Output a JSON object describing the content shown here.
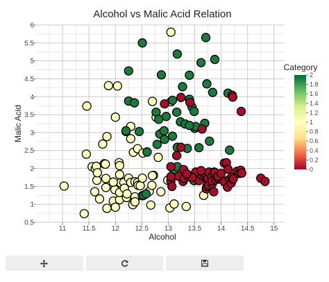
{
  "chart_data": {
    "type": "scatter",
    "title": "Alcohol vs Malic Acid Relation",
    "xlabel": "Alcohol",
    "ylabel": "Malic Acid",
    "xlim": [
      10.5,
      15.2
    ],
    "ylim": [
      0.5,
      6.0
    ],
    "xticks": [
      "11",
      "11.5",
      "12",
      "12.5",
      "13",
      "13.5",
      "14",
      "14.5",
      "15"
    ],
    "yticks": [
      "0.5",
      "1",
      "1.5",
      "2",
      "2.5",
      "3",
      "3.5",
      "4",
      "4.5",
      "5",
      "5.5",
      "6"
    ],
    "grid": true,
    "colorbar": {
      "title": "Category",
      "min": 0,
      "max": 2,
      "ticks": [
        "0",
        "0.2",
        "0.4",
        "0.6",
        "0.8",
        "1",
        "1.2",
        "1.4",
        "1.6",
        "1.8",
        "2"
      ],
      "colors": [
        "#a50026",
        "#f46d43",
        "#fee08b",
        "#ffffbf",
        "#d9ef8b",
        "#66bd63",
        "#006837"
      ]
    },
    "points": [
      {
        "x": 11.03,
        "y": 1.51,
        "c": 1
      },
      {
        "x": 11.41,
        "y": 0.74,
        "c": 1
      },
      {
        "x": 11.45,
        "y": 2.4,
        "c": 1
      },
      {
        "x": 11.46,
        "y": 3.74,
        "c": 1
      },
      {
        "x": 11.56,
        "y": 2.05,
        "c": 1
      },
      {
        "x": 11.61,
        "y": 1.35,
        "c": 1
      },
      {
        "x": 11.62,
        "y": 1.99,
        "c": 1
      },
      {
        "x": 11.64,
        "y": 2.06,
        "c": 1
      },
      {
        "x": 11.65,
        "y": 1.67,
        "c": 1
      },
      {
        "x": 11.66,
        "y": 1.88,
        "c": 1
      },
      {
        "x": 11.7,
        "y": 1.15,
        "c": 1
      },
      {
        "x": 11.76,
        "y": 2.68,
        "c": 1
      },
      {
        "x": 11.79,
        "y": 2.13,
        "c": 1
      },
      {
        "x": 11.81,
        "y": 2.12,
        "c": 1
      },
      {
        "x": 11.82,
        "y": 1.72,
        "c": 1
      },
      {
        "x": 11.82,
        "y": 1.47,
        "c": 1
      },
      {
        "x": 11.84,
        "y": 2.89,
        "c": 1
      },
      {
        "x": 11.84,
        "y": 0.89,
        "c": 1
      },
      {
        "x": 11.87,
        "y": 4.31,
        "c": 1
      },
      {
        "x": 11.96,
        "y": 1.09,
        "c": 1
      },
      {
        "x": 11.99,
        "y": 1.41,
        "c": 1
      },
      {
        "x": 12.0,
        "y": 0.92,
        "c": 1
      },
      {
        "x": 12.0,
        "y": 3.43,
        "c": 1
      },
      {
        "x": 12.04,
        "y": 4.3,
        "c": 1
      },
      {
        "x": 12.07,
        "y": 2.16,
        "c": 1
      },
      {
        "x": 12.08,
        "y": 1.13,
        "c": 1
      },
      {
        "x": 12.08,
        "y": 1.33,
        "c": 1
      },
      {
        "x": 12.08,
        "y": 2.08,
        "c": 1
      },
      {
        "x": 12.08,
        "y": 1.83,
        "c": 1
      },
      {
        "x": 12.1,
        "y": 1.6,
        "c": 1
      },
      {
        "x": 12.16,
        "y": 1.61,
        "c": 1
      },
      {
        "x": 12.17,
        "y": 1.45,
        "c": 1
      },
      {
        "x": 12.2,
        "y": 3.03,
        "c": 1
      },
      {
        "x": 12.21,
        "y": 1.19,
        "c": 1
      },
      {
        "x": 12.22,
        "y": 1.29,
        "c": 1
      },
      {
        "x": 12.25,
        "y": 1.73,
        "c": 1
      },
      {
        "x": 12.29,
        "y": 3.17,
        "c": 1
      },
      {
        "x": 12.29,
        "y": 2.83,
        "c": 1
      },
      {
        "x": 12.29,
        "y": 1.61,
        "c": 1
      },
      {
        "x": 12.33,
        "y": 0.99,
        "c": 1
      },
      {
        "x": 12.34,
        "y": 2.45,
        "c": 1
      },
      {
        "x": 12.37,
        "y": 1.63,
        "c": 1
      },
      {
        "x": 12.37,
        "y": 1.13,
        "c": 1
      },
      {
        "x": 12.37,
        "y": 1.21,
        "c": 1
      },
      {
        "x": 12.37,
        "y": 1.07,
        "c": 1
      },
      {
        "x": 12.42,
        "y": 1.61,
        "c": 1
      },
      {
        "x": 12.42,
        "y": 2.55,
        "c": 1
      },
      {
        "x": 12.43,
        "y": 1.53,
        "c": 1
      },
      {
        "x": 12.47,
        "y": 1.52,
        "c": 1
      },
      {
        "x": 12.51,
        "y": 1.73,
        "c": 1
      },
      {
        "x": 12.52,
        "y": 2.43,
        "c": 1
      },
      {
        "x": 12.6,
        "y": 2.46,
        "c": 1
      },
      {
        "x": 12.64,
        "y": 1.36,
        "c": 1
      },
      {
        "x": 12.67,
        "y": 0.98,
        "c": 1
      },
      {
        "x": 12.69,
        "y": 1.53,
        "c": 1
      },
      {
        "x": 12.7,
        "y": 3.87,
        "c": 1
      },
      {
        "x": 12.72,
        "y": 1.81,
        "c": 1
      },
      {
        "x": 12.77,
        "y": 3.43,
        "c": 1
      },
      {
        "x": 12.99,
        "y": 1.67,
        "c": 1
      },
      {
        "x": 13.03,
        "y": 0.9,
        "c": 1
      },
      {
        "x": 13.05,
        "y": 5.8,
        "c": 1
      },
      {
        "x": 13.05,
        "y": 3.86,
        "c": 1
      },
      {
        "x": 13.11,
        "y": 1.01,
        "c": 1
      },
      {
        "x": 13.34,
        "y": 0.94,
        "c": 1
      },
      {
        "x": 13.49,
        "y": 1.66,
        "c": 1
      },
      {
        "x": 13.67,
        "y": 1.25,
        "c": 1
      },
      {
        "x": 12.86,
        "y": 1.35,
        "c": 1
      },
      {
        "x": 12.88,
        "y": 2.99,
        "c": 1
      },
      {
        "x": 12.81,
        "y": 2.31,
        "c": 1
      },
      {
        "x": 12.7,
        "y": 1.8,
        "c": 1
      },
      {
        "x": 12.51,
        "y": 1.24,
        "c": 1
      },
      {
        "x": 11.96,
        "y": 1.62,
        "c": 1
      },
      {
        "x": 12.2,
        "y": 3.05,
        "c": 2
      },
      {
        "x": 12.25,
        "y": 3.88,
        "c": 2
      },
      {
        "x": 12.25,
        "y": 4.72,
        "c": 2
      },
      {
        "x": 12.36,
        "y": 3.83,
        "c": 2
      },
      {
        "x": 12.45,
        "y": 3.03,
        "c": 2
      },
      {
        "x": 12.51,
        "y": 5.5,
        "c": 2
      },
      {
        "x": 12.53,
        "y": 1.25,
        "c": 2
      },
      {
        "x": 12.58,
        "y": 1.29,
        "c": 2
      },
      {
        "x": 12.6,
        "y": 2.46,
        "c": 2
      },
      {
        "x": 12.77,
        "y": 3.57,
        "c": 2
      },
      {
        "x": 12.79,
        "y": 2.67,
        "c": 2
      },
      {
        "x": 12.82,
        "y": 3.37,
        "c": 2
      },
      {
        "x": 12.84,
        "y": 2.96,
        "c": 2
      },
      {
        "x": 12.87,
        "y": 4.61,
        "c": 2
      },
      {
        "x": 12.93,
        "y": 2.81,
        "c": 2
      },
      {
        "x": 12.96,
        "y": 3.45,
        "c": 2
      },
      {
        "x": 13.08,
        "y": 3.9,
        "c": 2
      },
      {
        "x": 13.16,
        "y": 3.57,
        "c": 2
      },
      {
        "x": 13.17,
        "y": 5.19,
        "c": 2
      },
      {
        "x": 13.17,
        "y": 2.59,
        "c": 2
      },
      {
        "x": 13.23,
        "y": 3.3,
        "c": 2
      },
      {
        "x": 13.27,
        "y": 4.28,
        "c": 2
      },
      {
        "x": 13.32,
        "y": 3.24,
        "c": 2
      },
      {
        "x": 13.36,
        "y": 2.56,
        "c": 2
      },
      {
        "x": 13.4,
        "y": 3.93,
        "c": 2
      },
      {
        "x": 13.4,
        "y": 4.6,
        "c": 2
      },
      {
        "x": 13.45,
        "y": 3.71,
        "c": 2
      },
      {
        "x": 13.48,
        "y": 1.67,
        "c": 2
      },
      {
        "x": 13.49,
        "y": 3.59,
        "c": 2
      },
      {
        "x": 13.5,
        "y": 3.12,
        "c": 2
      },
      {
        "x": 13.52,
        "y": 3.17,
        "c": 2
      },
      {
        "x": 13.58,
        "y": 2.58,
        "c": 2
      },
      {
        "x": 13.62,
        "y": 4.95,
        "c": 2
      },
      {
        "x": 13.69,
        "y": 3.26,
        "c": 2
      },
      {
        "x": 13.71,
        "y": 5.65,
        "c": 2
      },
      {
        "x": 13.73,
        "y": 4.36,
        "c": 2
      },
      {
        "x": 13.78,
        "y": 2.76,
        "c": 2
      },
      {
        "x": 13.84,
        "y": 4.12,
        "c": 2
      },
      {
        "x": 13.88,
        "y": 5.04,
        "c": 2
      },
      {
        "x": 14.16,
        "y": 2.51,
        "c": 2
      },
      {
        "x": 14.13,
        "y": 4.1,
        "c": 2
      },
      {
        "x": 13.11,
        "y": 1.9,
        "c": 2
      },
      {
        "x": 13.4,
        "y": 3.2,
        "c": 2
      },
      {
        "x": 13.17,
        "y": 2.05,
        "c": 2
      },
      {
        "x": 12.92,
        "y": 3.05,
        "c": 2
      },
      {
        "x": 13.08,
        "y": 2.9,
        "c": 2
      },
      {
        "x": 12.93,
        "y": 3.8,
        "c": 0
      },
      {
        "x": 13.05,
        "y": 1.65,
        "c": 0
      },
      {
        "x": 13.05,
        "y": 1.77,
        "c": 0
      },
      {
        "x": 13.05,
        "y": 2.05,
        "c": 0
      },
      {
        "x": 13.07,
        "y": 1.5,
        "c": 0
      },
      {
        "x": 13.16,
        "y": 2.36,
        "c": 0
      },
      {
        "x": 13.2,
        "y": 1.78,
        "c": 0
      },
      {
        "x": 13.24,
        "y": 2.59,
        "c": 0
      },
      {
        "x": 13.24,
        "y": 3.98,
        "c": 0
      },
      {
        "x": 13.28,
        "y": 1.64,
        "c": 0
      },
      {
        "x": 13.29,
        "y": 1.97,
        "c": 0
      },
      {
        "x": 13.3,
        "y": 1.72,
        "c": 0
      },
      {
        "x": 13.39,
        "y": 1.77,
        "c": 0
      },
      {
        "x": 13.41,
        "y": 3.84,
        "c": 0
      },
      {
        "x": 13.48,
        "y": 1.81,
        "c": 0
      },
      {
        "x": 13.5,
        "y": 1.81,
        "c": 0
      },
      {
        "x": 13.51,
        "y": 1.8,
        "c": 0
      },
      {
        "x": 13.56,
        "y": 1.71,
        "c": 0
      },
      {
        "x": 13.56,
        "y": 1.73,
        "c": 0
      },
      {
        "x": 13.58,
        "y": 1.66,
        "c": 0
      },
      {
        "x": 13.63,
        "y": 1.81,
        "c": 0
      },
      {
        "x": 13.64,
        "y": 3.1,
        "c": 0
      },
      {
        "x": 13.68,
        "y": 1.83,
        "c": 0
      },
      {
        "x": 13.71,
        "y": 1.86,
        "c": 0
      },
      {
        "x": 13.72,
        "y": 1.43,
        "c": 0
      },
      {
        "x": 13.73,
        "y": 1.5,
        "c": 0
      },
      {
        "x": 13.74,
        "y": 1.67,
        "c": 0
      },
      {
        "x": 13.75,
        "y": 1.73,
        "c": 0
      },
      {
        "x": 13.76,
        "y": 1.53,
        "c": 0
      },
      {
        "x": 13.77,
        "y": 1.9,
        "c": 0
      },
      {
        "x": 13.82,
        "y": 1.75,
        "c": 0
      },
      {
        "x": 13.83,
        "y": 1.57,
        "c": 0
      },
      {
        "x": 13.83,
        "y": 1.65,
        "c": 0
      },
      {
        "x": 13.86,
        "y": 1.35,
        "c": 0
      },
      {
        "x": 13.87,
        "y": 1.9,
        "c": 0
      },
      {
        "x": 13.88,
        "y": 1.89,
        "c": 0
      },
      {
        "x": 13.9,
        "y": 1.68,
        "c": 0
      },
      {
        "x": 13.94,
        "y": 1.73,
        "c": 0
      },
      {
        "x": 14.02,
        "y": 1.68,
        "c": 0
      },
      {
        "x": 14.06,
        "y": 1.63,
        "c": 0
      },
      {
        "x": 14.06,
        "y": 2.15,
        "c": 0
      },
      {
        "x": 14.1,
        "y": 2.16,
        "c": 0
      },
      {
        "x": 14.12,
        "y": 1.48,
        "c": 0
      },
      {
        "x": 14.13,
        "y": 1.98,
        "c": 0
      },
      {
        "x": 14.16,
        "y": 1.7,
        "c": 0
      },
      {
        "x": 14.19,
        "y": 1.59,
        "c": 0
      },
      {
        "x": 14.2,
        "y": 1.76,
        "c": 0
      },
      {
        "x": 14.21,
        "y": 4.04,
        "c": 0
      },
      {
        "x": 14.22,
        "y": 1.7,
        "c": 0
      },
      {
        "x": 14.22,
        "y": 3.99,
        "c": 0
      },
      {
        "x": 14.23,
        "y": 1.71,
        "c": 0
      },
      {
        "x": 14.3,
        "y": 1.92,
        "c": 0
      },
      {
        "x": 14.34,
        "y": 1.86,
        "c": 0
      },
      {
        "x": 14.37,
        "y": 1.95,
        "c": 0
      },
      {
        "x": 14.38,
        "y": 1.87,
        "c": 0
      },
      {
        "x": 14.38,
        "y": 3.59,
        "c": 0
      },
      {
        "x": 14.39,
        "y": 1.87,
        "c": 0
      },
      {
        "x": 14.75,
        "y": 1.73,
        "c": 0
      },
      {
        "x": 14.83,
        "y": 1.64,
        "c": 0
      },
      {
        "x": 13.52,
        "y": 1.9,
        "c": 0
      },
      {
        "x": 13.94,
        "y": 1.78,
        "c": 0
      },
      {
        "x": 13.62,
        "y": 1.94,
        "c": 0
      },
      {
        "x": 14.0,
        "y": 1.86,
        "c": 0
      },
      {
        "x": 13.45,
        "y": 1.75,
        "c": 0
      },
      {
        "x": 13.35,
        "y": 1.85,
        "c": 0
      }
    ]
  },
  "toolbar": {
    "buttons": [
      {
        "icon": "move-icon"
      },
      {
        "icon": "refresh-icon"
      },
      {
        "icon": "save-icon"
      }
    ]
  }
}
